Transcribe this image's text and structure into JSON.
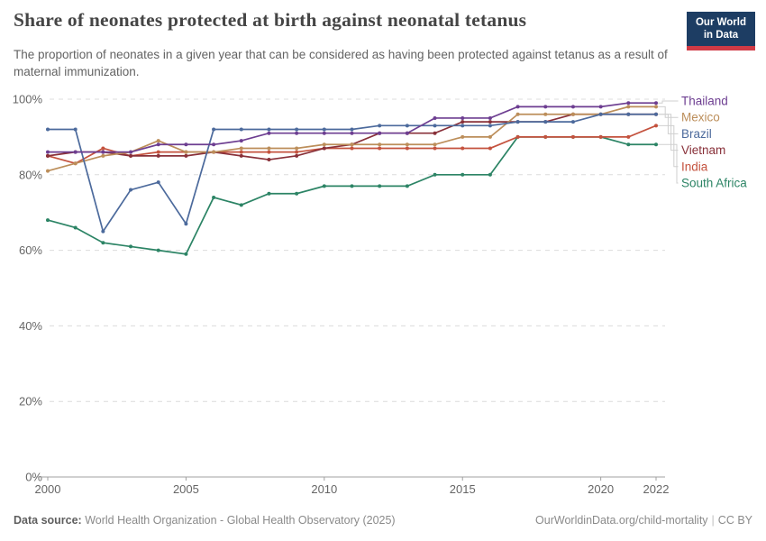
{
  "header": {
    "title": "Share of neonates protected at birth against neonatal tetanus",
    "subtitle": "The proportion of neonates in a given year that can be considered as having been protected against tetanus as a result of maternal immunization.",
    "logo": {
      "line1": "Our World",
      "line2": "in Data",
      "bg": "#1d3d63",
      "accent": "#d03a45"
    }
  },
  "chart_data": {
    "type": "line",
    "title": "Share of neonates protected at birth against neonatal tetanus",
    "xlabel": "",
    "ylabel": "",
    "x": [
      2000,
      2001,
      2002,
      2003,
      2004,
      2005,
      2006,
      2007,
      2008,
      2009,
      2010,
      2011,
      2012,
      2013,
      2014,
      2015,
      2016,
      2017,
      2018,
      2019,
      2020,
      2021,
      2022
    ],
    "series": [
      {
        "name": "Thailand",
        "color": "#6D3E91",
        "values": [
          86,
          86,
          86,
          86,
          88,
          88,
          88,
          89,
          91,
          91,
          91,
          91,
          91,
          91,
          95,
          95,
          95,
          98,
          98,
          98,
          98,
          99,
          99
        ]
      },
      {
        "name": "Mexico",
        "color": "#BC8E5A",
        "values": [
          81,
          83,
          85,
          86,
          89,
          86,
          86,
          87,
          87,
          87,
          88,
          88,
          88,
          88,
          88,
          90,
          90,
          96,
          96,
          96,
          96,
          98,
          98
        ]
      },
      {
        "name": "Brazil",
        "color": "#4C6A9C",
        "values": [
          92,
          92,
          65,
          76,
          78,
          67,
          92,
          92,
          92,
          92,
          92,
          92,
          93,
          93,
          93,
          93,
          93,
          94,
          94,
          94,
          96,
          96,
          96
        ]
      },
      {
        "name": "Vietnam",
        "color": "#883039",
        "values": [
          85,
          86,
          86,
          85,
          85,
          85,
          86,
          85,
          84,
          85,
          87,
          88,
          91,
          91,
          91,
          94,
          94,
          94,
          94,
          96,
          96,
          96,
          96
        ]
      },
      {
        "name": "India",
        "color": "#C4523E",
        "values": [
          85,
          83,
          87,
          85,
          86,
          86,
          86,
          86,
          86,
          86,
          87,
          87,
          87,
          87,
          87,
          87,
          87,
          90,
          90,
          90,
          90,
          90,
          93
        ]
      },
      {
        "name": "South Africa",
        "color": "#2C8465",
        "values": [
          68,
          66,
          62,
          61,
          60,
          59,
          74,
          72,
          75,
          75,
          77,
          77,
          77,
          77,
          80,
          80,
          80,
          90,
          90,
          90,
          90,
          88,
          88
        ]
      }
    ],
    "ylim": [
      0,
      100
    ],
    "yticks": [
      0,
      20,
      40,
      60,
      80,
      100
    ],
    "ytick_suffix": "%",
    "xticks": [
      2000,
      2005,
      2010,
      2015,
      2020,
      2022
    ],
    "grid": true,
    "legend_position": "right",
    "legend_order": [
      "Thailand",
      "Mexico",
      "Brazil",
      "Vietnam",
      "India",
      "South Africa"
    ],
    "draw_order": [
      "South Africa",
      "India",
      "Vietnam",
      "Mexico",
      "Brazil",
      "Thailand"
    ]
  },
  "footer": {
    "source_label": "Data source:",
    "source_text": "World Health Organization - Global Health Observatory (2025)",
    "url": "OurWorldinData.org/child-mortality",
    "sep": "|",
    "license": "CC BY"
  }
}
